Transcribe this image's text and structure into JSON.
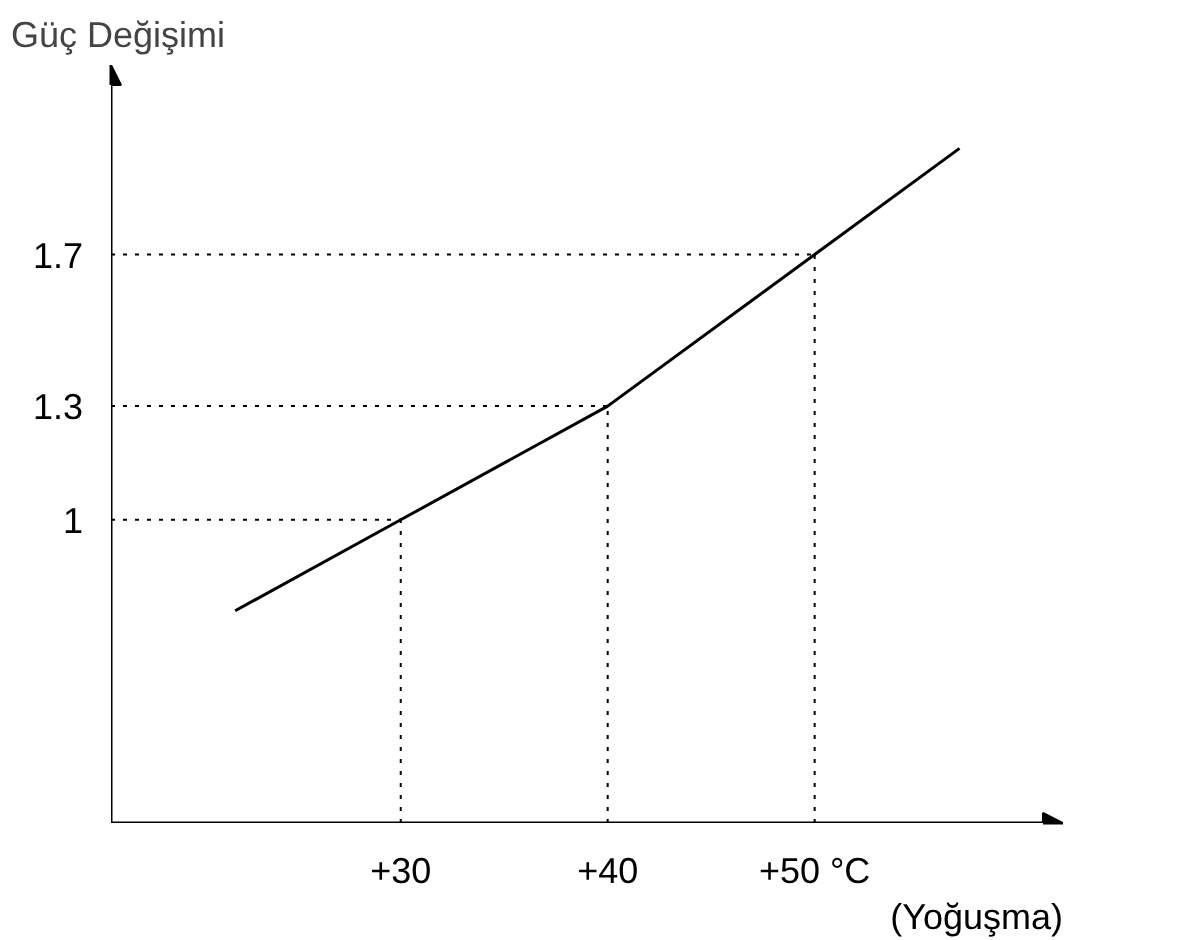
{
  "chart_data": {
    "type": "line",
    "xlabel": "(Yoğuşma)",
    "ylabel": "Güç Değişimi",
    "x": [
      22,
      30,
      40,
      50,
      57
    ],
    "series": [
      {
        "color": "#000000",
        "values": [
          0.76,
          1,
          1.3,
          1.7,
          1.98
        ]
      }
    ],
    "xlim": [
      16,
      62
    ],
    "ylim": [
      0.2,
      2.2
    ],
    "xticks": [
      {
        "value": 30,
        "label": "+30"
      },
      {
        "value": 40,
        "label": "+40"
      },
      {
        "value": 50,
        "label": "+50 °C"
      }
    ],
    "yticks": [
      1,
      1.3,
      1.7
    ],
    "ref_lines": [
      {
        "axis": "x",
        "value": 30,
        "line_style": "dotted"
      },
      {
        "axis": "x",
        "value": 40,
        "line_style": "dotted"
      },
      {
        "axis": "x",
        "value": 50,
        "line_style": "dotted"
      },
      {
        "axis": "y",
        "value": 1,
        "line_style": "dotted"
      },
      {
        "axis": "y",
        "value": 1.3,
        "line_style": "dotted"
      },
      {
        "axis": "y",
        "value": 1.7,
        "line_style": "dotted"
      }
    ],
    "grid": false,
    "marker": "none",
    "line_style": "solid"
  }
}
